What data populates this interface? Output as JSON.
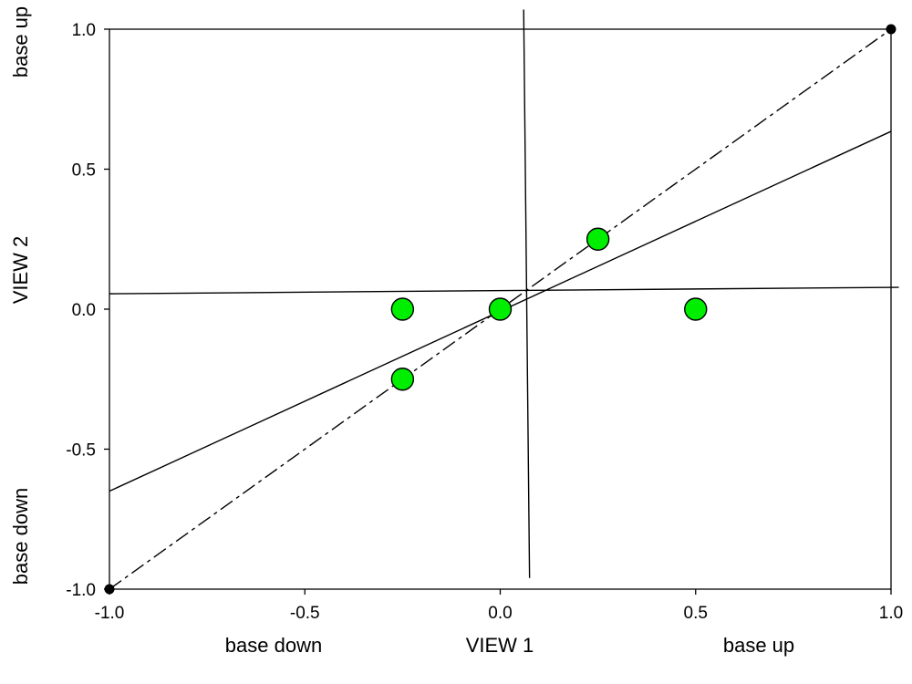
{
  "chart_data": {
    "type": "scatter",
    "xlim": [
      -1.0,
      1.0
    ],
    "ylim": [
      -1.0,
      1.0
    ],
    "x_ticks": [
      "-1.0",
      "-0.5",
      "0.0",
      "0.5",
      "1.0"
    ],
    "y_ticks": [
      "-1.0",
      "-0.5",
      "0.0",
      "0.5",
      "1.0"
    ],
    "x_ticks_values": [
      -1.0,
      -0.5,
      0.0,
      0.5,
      1.0
    ],
    "y_ticks_values": [
      -1.0,
      -0.5,
      0.0,
      0.5,
      1.0
    ],
    "xlabel": "VIEW 1",
    "ylabel": "VIEW 2",
    "x_low_label": "base down",
    "x_high_label": "base up",
    "y_low_label": "base down",
    "y_high_label": "base up",
    "grid": false,
    "points": [
      {
        "x": -0.25,
        "y": 0.0
      },
      {
        "x": 0.0,
        "y": 0.0
      },
      {
        "x": 0.25,
        "y": 0.25
      },
      {
        "x": -0.25,
        "y": -0.25
      },
      {
        "x": 0.5,
        "y": 0.0
      }
    ],
    "point_color": "#00ee00",
    "identity_line": {
      "x": [
        -1.0,
        1.0
      ],
      "y": [
        -1.0,
        1.0
      ],
      "style": "dash-dot"
    },
    "endpoint_markers": [
      {
        "x": -1.0,
        "y": -1.0
      },
      {
        "x": 1.0,
        "y": 1.0
      }
    ],
    "regression_line_y_on_x": {
      "x": [
        -1.0,
        1.0
      ],
      "y": [
        -0.65,
        0.635
      ]
    },
    "regression_line_x_on_y": {
      "x": [
        0.06,
        0.075
      ],
      "y": [
        1.07,
        -0.96
      ]
    },
    "horizontal_line": {
      "x": [
        -1.0,
        1.02
      ],
      "y": [
        0.055,
        0.078
      ]
    }
  }
}
